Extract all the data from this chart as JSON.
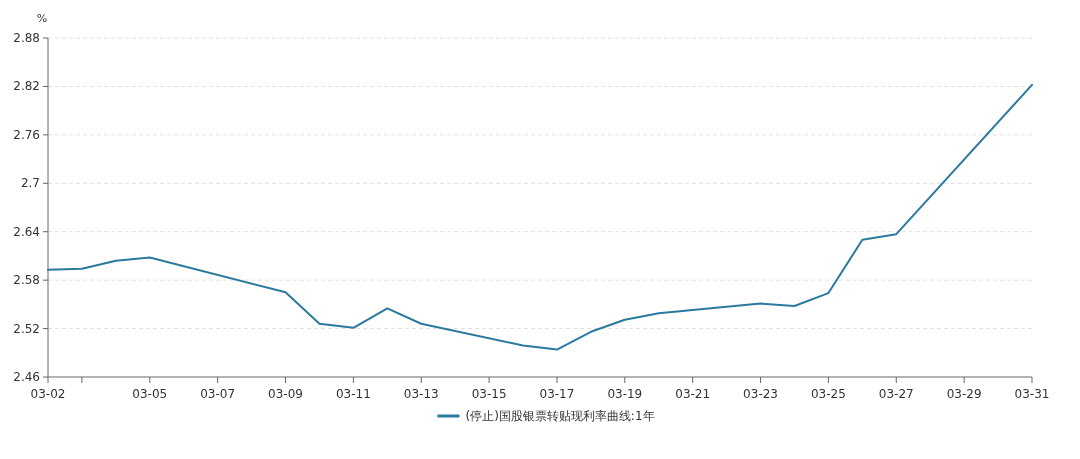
{
  "chart_data": {
    "type": "line",
    "ylabel": "%",
    "x": [
      "--03-02",
      "--03-03",
      "--03-04",
      "--03-05",
      "--03-09",
      "--03-10",
      "--03-11",
      "--03-12",
      "--03-13",
      "--03-16",
      "--03-17",
      "--03-18",
      "--03-19",
      "--03-20",
      "--03-23",
      "--03-24",
      "--03-25",
      "--03-26",
      "--03-27",
      "--03-31"
    ],
    "series": [
      {
        "name": "(停止)国股银票转贴现利率曲线:1年",
        "color": "#2b7a9e",
        "values": [
          2.593,
          2.594,
          2.604,
          2.608,
          2.565,
          2.526,
          2.521,
          2.545,
          2.526,
          2.499,
          2.494,
          2.516,
          2.531,
          2.539,
          2.551,
          2.548,
          2.564,
          2.63,
          2.637,
          2.822
        ]
      }
    ],
    "xlim": [
      "--03-02",
      "--03-31"
    ],
    "xticks": [
      {
        "value": "--03-02",
        "label": "03-02"
      },
      {
        "value": "--03-03",
        "label": null
      },
      {
        "value": "--03-05",
        "label": "03-05"
      },
      {
        "value": "--03-07",
        "label": "03-07"
      },
      {
        "value": "--03-09",
        "label": "03-09"
      },
      {
        "value": "--03-11",
        "label": "03-11"
      },
      {
        "value": "--03-13",
        "label": "03-13"
      },
      {
        "value": "--03-15",
        "label": "03-15"
      },
      {
        "value": "--03-17",
        "label": "03-17"
      },
      {
        "value": "--03-19",
        "label": "03-19"
      },
      {
        "value": "--03-21",
        "label": "03-21"
      },
      {
        "value": "--03-23",
        "label": "03-23"
      },
      {
        "value": "--03-25",
        "label": "03-25"
      },
      {
        "value": "--03-27",
        "label": "03-27"
      },
      {
        "value": "--03-29",
        "label": "03-29"
      },
      {
        "value": "--03-31",
        "label": "03-31"
      }
    ],
    "ylim": [
      2.46,
      2.88
    ],
    "yticks": [
      2.46,
      2.52,
      2.58,
      2.64,
      2.7,
      2.76,
      2.82,
      2.88
    ],
    "grid": "y",
    "legend": "bottom",
    "marker": "none",
    "line_style": "solid"
  }
}
